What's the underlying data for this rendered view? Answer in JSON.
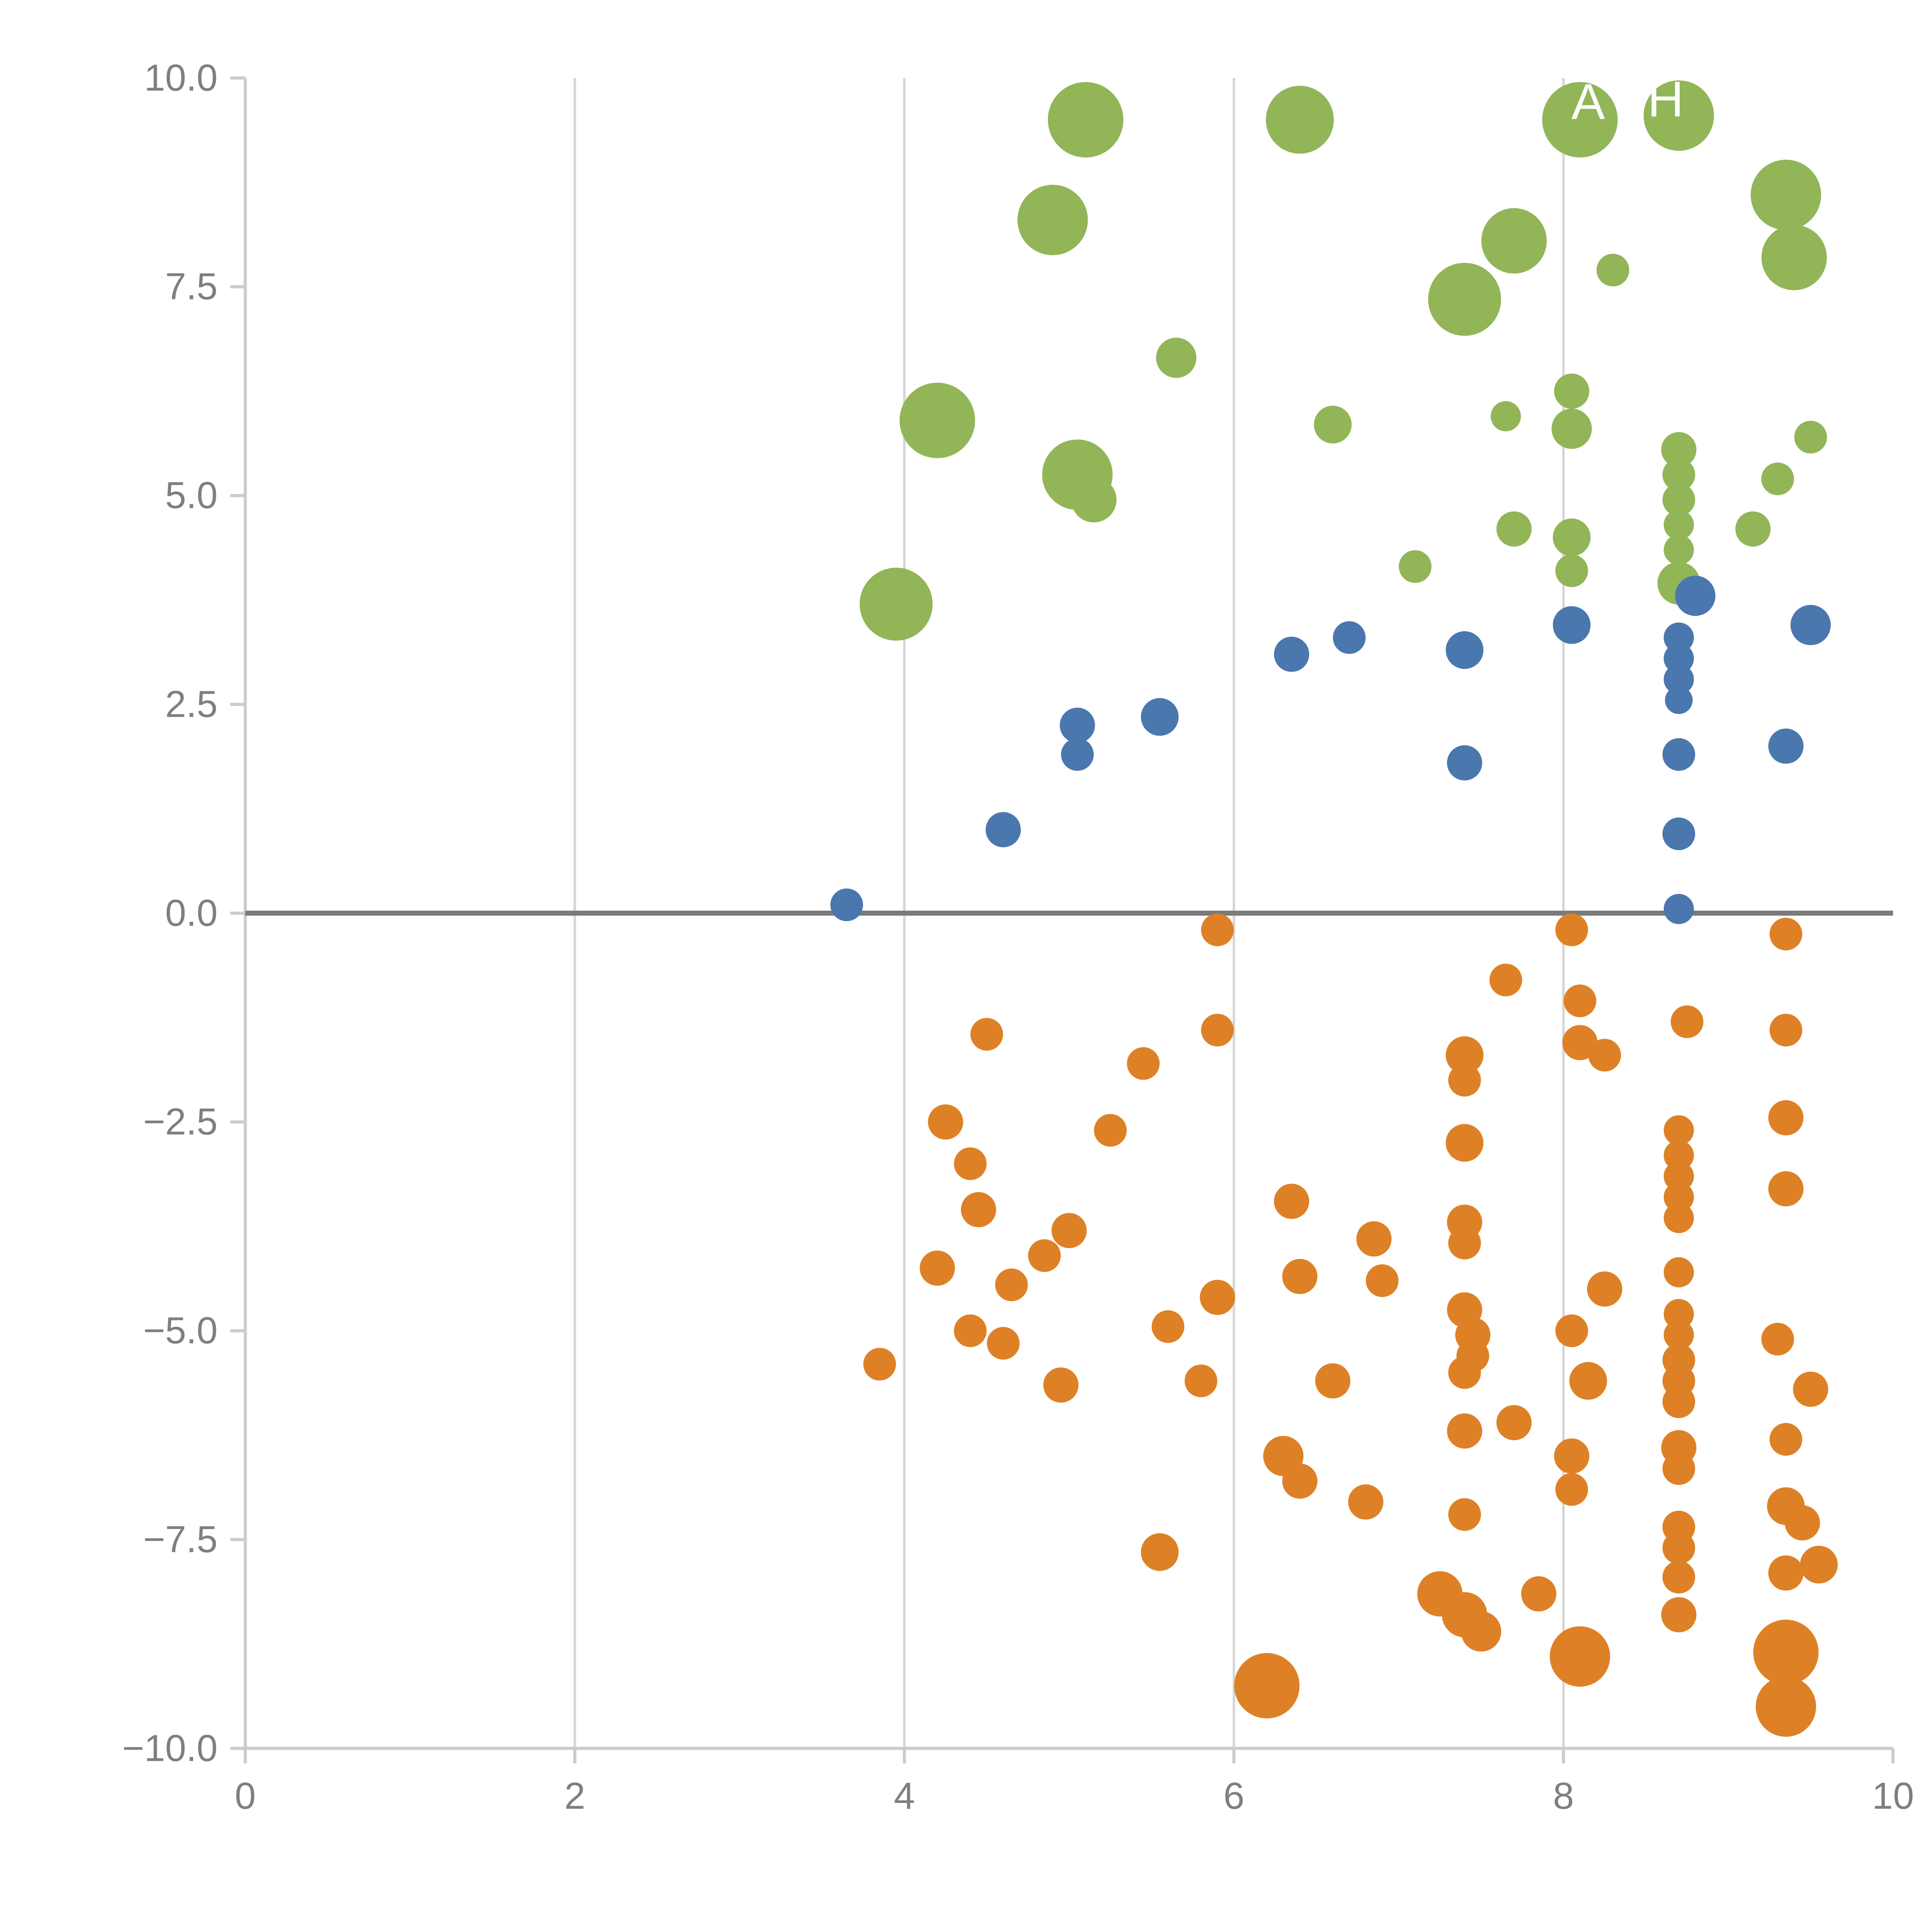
{
  "page": {
    "title": "",
    "background": "#ffffff"
  },
  "chart_data": {
    "type": "scatter",
    "title": "",
    "xlabel": "",
    "ylabel": "",
    "xlim": [
      0,
      10
    ],
    "ylim": [
      -10,
      10
    ],
    "x_ticks": [
      0,
      2,
      4,
      6,
      8,
      10
    ],
    "x_tick_labels": [
      "0",
      "2",
      "4",
      "6",
      "8",
      "10"
    ],
    "y_ticks": [
      -10,
      -7.5,
      -5,
      -2.5,
      0,
      2.5,
      5,
      7.5,
      10
    ],
    "y_tick_labels": [
      "−10.0",
      "−7.5",
      "−5.0",
      "−2.5",
      "0.0",
      "2.5",
      "5.0",
      "7.5",
      "10.0"
    ],
    "grid": true,
    "gridlines_x": [
      2,
      4,
      6,
      8
    ],
    "zero_line_y": 0,
    "legend": "none",
    "colors": {
      "green": "#92B558",
      "blue": "#4A77AE",
      "orange": "#DE8126",
      "grid": "#d6d6d6",
      "spine": "#cccccc",
      "zero_line": "#7a7a7a",
      "tick_text": "#7f7f7f"
    },
    "series": [
      {
        "name": "green",
        "color": "#92B558",
        "points": [
          [
            5.1,
            9.5,
            30
          ],
          [
            6.4,
            9.5,
            27
          ],
          [
            8.1,
            9.5,
            30
          ],
          [
            8.7,
            9.55,
            28
          ],
          [
            4.9,
            8.3,
            28
          ],
          [
            9.35,
            8.6,
            28
          ],
          [
            9.4,
            7.85,
            26
          ],
          [
            7.7,
            8.05,
            26
          ],
          [
            7.4,
            7.35,
            29
          ],
          [
            8.3,
            7.7,
            13
          ],
          [
            5.65,
            6.65,
            16
          ],
          [
            4.2,
            5.9,
            30
          ],
          [
            8.05,
            6.25,
            14
          ],
          [
            8.05,
            5.8,
            16
          ],
          [
            7.65,
            5.95,
            12
          ],
          [
            6.6,
            5.85,
            15
          ],
          [
            5.05,
            5.25,
            28
          ],
          [
            5.15,
            4.95,
            18
          ],
          [
            9.5,
            5.7,
            13
          ],
          [
            9.3,
            5.2,
            13
          ],
          [
            8.7,
            5.55,
            14
          ],
          [
            8.7,
            5.25,
            13
          ],
          [
            8.7,
            4.95,
            13
          ],
          [
            8.7,
            4.65,
            12
          ],
          [
            8.7,
            4.35,
            12
          ],
          [
            7.7,
            4.6,
            14
          ],
          [
            8.05,
            4.5,
            15
          ],
          [
            8.05,
            4.1,
            13
          ],
          [
            9.15,
            4.6,
            14
          ],
          [
            7.1,
            4.15,
            13
          ],
          [
            3.95,
            3.7,
            29
          ],
          [
            8.7,
            3.95,
            17
          ]
        ]
      },
      {
        "name": "blue",
        "color": "#4A77AE",
        "points": [
          [
            8.8,
            3.8,
            16
          ],
          [
            9.5,
            3.45,
            16
          ],
          [
            8.05,
            3.45,
            15
          ],
          [
            6.35,
            3.1,
            14
          ],
          [
            6.7,
            3.3,
            13
          ],
          [
            7.4,
            3.15,
            15
          ],
          [
            8.7,
            3.3,
            12
          ],
          [
            8.7,
            3.05,
            12
          ],
          [
            8.7,
            2.8,
            12
          ],
          [
            8.7,
            2.55,
            11
          ],
          [
            5.55,
            2.35,
            15
          ],
          [
            5.05,
            2.25,
            14
          ],
          [
            5.05,
            1.9,
            13
          ],
          [
            7.4,
            1.8,
            14
          ],
          [
            8.7,
            1.9,
            13
          ],
          [
            9.35,
            2.0,
            14
          ],
          [
            4.6,
            1.0,
            14
          ],
          [
            8.7,
            0.95,
            13
          ],
          [
            3.65,
            0.1,
            13
          ],
          [
            8.7,
            0.05,
            12
          ]
        ]
      },
      {
        "name": "orange",
        "color": "#DE8126",
        "points": [
          [
            5.9,
            -0.2,
            13
          ],
          [
            8.05,
            -0.2,
            13
          ],
          [
            9.35,
            -0.25,
            13
          ],
          [
            7.65,
            -0.8,
            13
          ],
          [
            8.1,
            -1.05,
            13
          ],
          [
            4.5,
            -1.45,
            13
          ],
          [
            5.9,
            -1.4,
            13
          ],
          [
            8.75,
            -1.3,
            13
          ],
          [
            9.35,
            -1.4,
            13
          ],
          [
            8.1,
            -1.55,
            14
          ],
          [
            8.25,
            -1.7,
            13
          ],
          [
            7.4,
            -1.7,
            15
          ],
          [
            7.4,
            -2.0,
            13
          ],
          [
            5.45,
            -1.8,
            13
          ],
          [
            4.25,
            -2.5,
            14
          ],
          [
            5.25,
            -2.6,
            13
          ],
          [
            9.35,
            -2.45,
            14
          ],
          [
            4.4,
            -3.0,
            13
          ],
          [
            7.4,
            -2.75,
            15
          ],
          [
            8.7,
            -2.6,
            12
          ],
          [
            8.7,
            -2.9,
            12
          ],
          [
            8.7,
            -3.15,
            12
          ],
          [
            8.7,
            -3.4,
            12
          ],
          [
            8.7,
            -3.65,
            12
          ],
          [
            4.45,
            -3.55,
            14
          ],
          [
            6.35,
            -3.45,
            14
          ],
          [
            9.35,
            -3.3,
            14
          ],
          [
            5.0,
            -3.8,
            14
          ],
          [
            7.4,
            -3.7,
            14
          ],
          [
            7.4,
            -3.95,
            13
          ],
          [
            6.85,
            -3.9,
            14
          ],
          [
            4.2,
            -4.25,
            14
          ],
          [
            4.85,
            -4.1,
            13
          ],
          [
            4.65,
            -4.45,
            13
          ],
          [
            6.4,
            -4.35,
            14
          ],
          [
            5.9,
            -4.6,
            14
          ],
          [
            6.9,
            -4.4,
            13
          ],
          [
            8.25,
            -4.5,
            14
          ],
          [
            8.7,
            -4.3,
            12
          ],
          [
            4.4,
            -5.0,
            13
          ],
          [
            4.6,
            -5.15,
            13
          ],
          [
            5.6,
            -4.95,
            13
          ],
          [
            7.4,
            -4.75,
            14
          ],
          [
            7.45,
            -5.05,
            14
          ],
          [
            7.45,
            -5.3,
            13
          ],
          [
            8.05,
            -5.0,
            13
          ],
          [
            8.7,
            -4.8,
            12
          ],
          [
            8.7,
            -5.05,
            12
          ],
          [
            8.7,
            -5.35,
            13
          ],
          [
            8.7,
            -5.6,
            13
          ],
          [
            9.3,
            -5.1,
            13
          ],
          [
            3.85,
            -5.4,
            13
          ],
          [
            4.95,
            -5.65,
            14
          ],
          [
            5.8,
            -5.6,
            13
          ],
          [
            6.6,
            -5.6,
            14
          ],
          [
            7.4,
            -5.5,
            13
          ],
          [
            8.15,
            -5.6,
            15
          ],
          [
            8.7,
            -5.85,
            13
          ],
          [
            9.5,
            -5.7,
            14
          ],
          [
            7.4,
            -6.2,
            14
          ],
          [
            7.7,
            -6.1,
            14
          ],
          [
            8.05,
            -6.5,
            14
          ],
          [
            8.7,
            -6.4,
            14
          ],
          [
            8.7,
            -6.65,
            13
          ],
          [
            9.35,
            -6.3,
            13
          ],
          [
            6.3,
            -6.5,
            16
          ],
          [
            6.4,
            -6.8,
            14
          ],
          [
            6.8,
            -7.05,
            14
          ],
          [
            7.4,
            -7.2,
            13
          ],
          [
            8.05,
            -6.9,
            13
          ],
          [
            9.35,
            -7.1,
            15
          ],
          [
            9.45,
            -7.3,
            14
          ],
          [
            5.55,
            -7.65,
            15
          ],
          [
            8.7,
            -7.35,
            13
          ],
          [
            8.7,
            -7.6,
            13
          ],
          [
            9.55,
            -7.8,
            15
          ],
          [
            9.35,
            -7.9,
            14
          ],
          [
            7.25,
            -8.15,
            18
          ],
          [
            7.4,
            -8.4,
            18
          ],
          [
            7.5,
            -8.6,
            16
          ],
          [
            7.85,
            -8.15,
            14
          ],
          [
            8.7,
            -7.95,
            13
          ],
          [
            8.7,
            -8.4,
            14
          ],
          [
            8.1,
            -8.9,
            24
          ],
          [
            6.2,
            -9.25,
            26
          ],
          [
            9.35,
            -8.85,
            26
          ],
          [
            9.35,
            -9.5,
            24
          ]
        ]
      }
    ],
    "annotations": [
      {
        "text": "A",
        "x": 8.15,
        "y": 9.72,
        "color": "#ffffff"
      },
      {
        "text": "H",
        "x": 8.62,
        "y": 9.75,
        "color": "#ffffff"
      }
    ]
  }
}
